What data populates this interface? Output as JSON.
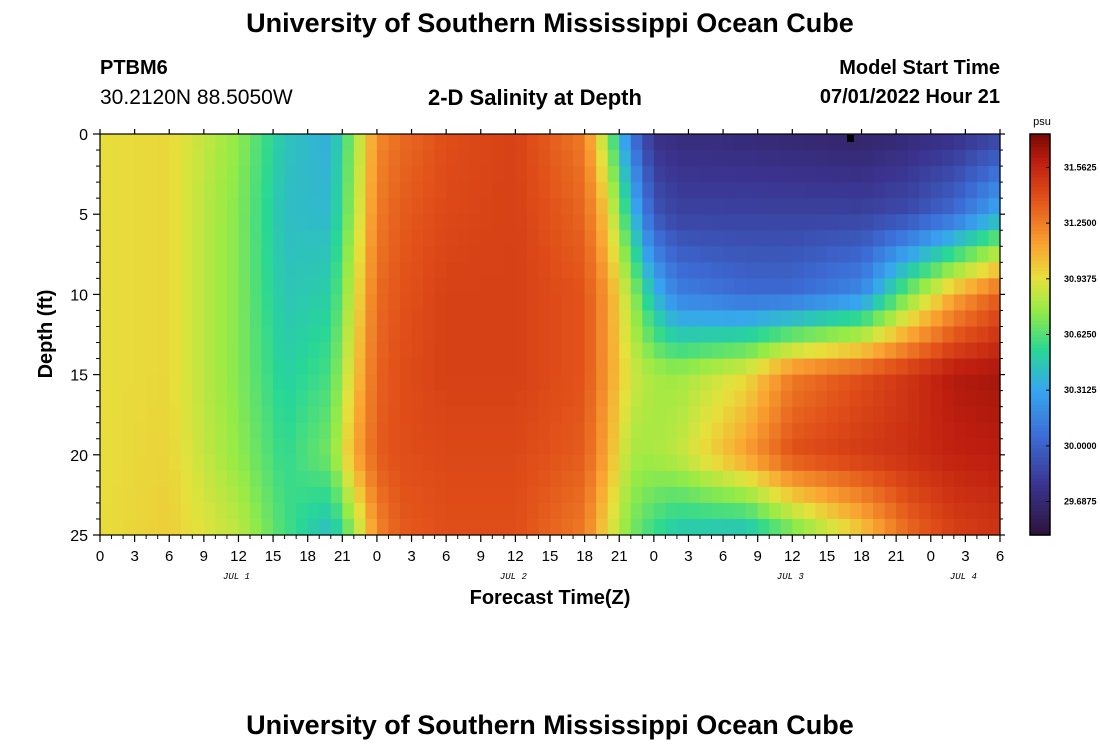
{
  "header": {
    "title": "University of Southern Mississippi Ocean Cube",
    "station": "PTBM6",
    "coords": "30.2120N  88.5050W",
    "subtitle": "2-D Salinity at Depth",
    "model_start_label": "Model Start Time",
    "model_start_value": "07/01/2022 Hour 21"
  },
  "footer": {
    "title": "University of Southern Mississippi Ocean Cube"
  },
  "chart_data": {
    "type": "heatmap",
    "title": "2-D Salinity at Depth",
    "xlabel": "Forecast Time(Z)",
    "ylabel": "Depth (ft)",
    "x_range_hours": [
      0,
      78
    ],
    "y_range_ft": [
      0,
      25
    ],
    "y_ticks": [
      "0",
      "5",
      "10",
      "15",
      "20",
      "25"
    ],
    "x_ticks": [
      "0",
      "3",
      "6",
      "9",
      "12",
      "15",
      "18",
      "21",
      "0",
      "3",
      "6",
      "9",
      "12",
      "15",
      "18",
      "21",
      "0",
      "3",
      "6",
      "9",
      "12",
      "15",
      "18",
      "21",
      "0",
      "3",
      "6"
    ],
    "day_labels": [
      {
        "label": "JUL 1",
        "hour": 12
      },
      {
        "label": "JUL 2",
        "hour": 36
      },
      {
        "label": "JUL 3",
        "hour": 60
      },
      {
        "label": "JUL 4",
        "hour": 75
      }
    ],
    "colorbar": {
      "unit": "psu",
      "min": 29.5,
      "max": 31.75,
      "tick_labels": [
        "31.5625",
        "31.2500",
        "30.9375",
        "30.6250",
        "30.3125",
        "30.0000",
        "29.6875"
      ],
      "tick_values": [
        31.5625,
        31.25,
        30.9375,
        30.625,
        30.3125,
        30.0,
        29.6875
      ]
    },
    "surface_marker_hour": 65,
    "salinity_psu": {
      "hours": [
        0,
        6,
        12,
        16,
        20,
        22,
        24,
        26,
        30,
        36,
        42,
        44,
        46,
        48,
        50,
        56,
        60,
        66,
        70,
        74,
        78
      ],
      "depths_ft": [
        0,
        5,
        10,
        15,
        20,
        25
      ],
      "rows": [
        [
          30.95,
          30.97,
          30.75,
          30.45,
          30.35,
          30.75,
          31.2,
          31.3,
          31.4,
          31.45,
          31.25,
          30.75,
          30.1,
          29.75,
          29.72,
          29.7,
          29.68,
          29.65,
          29.7,
          29.75,
          29.85
        ],
        [
          30.95,
          30.97,
          30.72,
          30.42,
          30.4,
          30.8,
          31.25,
          31.35,
          31.42,
          31.45,
          31.32,
          31.0,
          30.45,
          29.95,
          29.85,
          29.85,
          29.85,
          29.85,
          29.9,
          30.05,
          30.35
        ],
        [
          30.95,
          30.97,
          30.72,
          30.45,
          30.5,
          30.9,
          31.3,
          31.38,
          31.45,
          31.45,
          31.38,
          31.15,
          30.8,
          30.4,
          30.15,
          30.05,
          30.05,
          30.2,
          30.7,
          31.1,
          31.35
        ],
        [
          30.95,
          30.97,
          30.72,
          30.5,
          30.6,
          31.0,
          31.33,
          31.4,
          31.45,
          31.45,
          31.38,
          31.15,
          30.9,
          30.8,
          30.78,
          30.95,
          31.25,
          31.4,
          31.5,
          31.62,
          31.65
        ],
        [
          30.95,
          30.98,
          30.75,
          30.55,
          30.7,
          31.1,
          31.35,
          31.4,
          31.42,
          31.42,
          31.35,
          31.1,
          30.8,
          30.8,
          30.85,
          31.15,
          31.4,
          31.48,
          31.52,
          31.58,
          31.6
        ],
        [
          30.95,
          31.0,
          30.85,
          30.6,
          30.4,
          30.75,
          31.2,
          31.35,
          31.4,
          31.4,
          31.25,
          30.95,
          30.7,
          30.55,
          30.45,
          30.4,
          30.65,
          31.0,
          31.3,
          31.45,
          31.5
        ]
      ]
    }
  }
}
